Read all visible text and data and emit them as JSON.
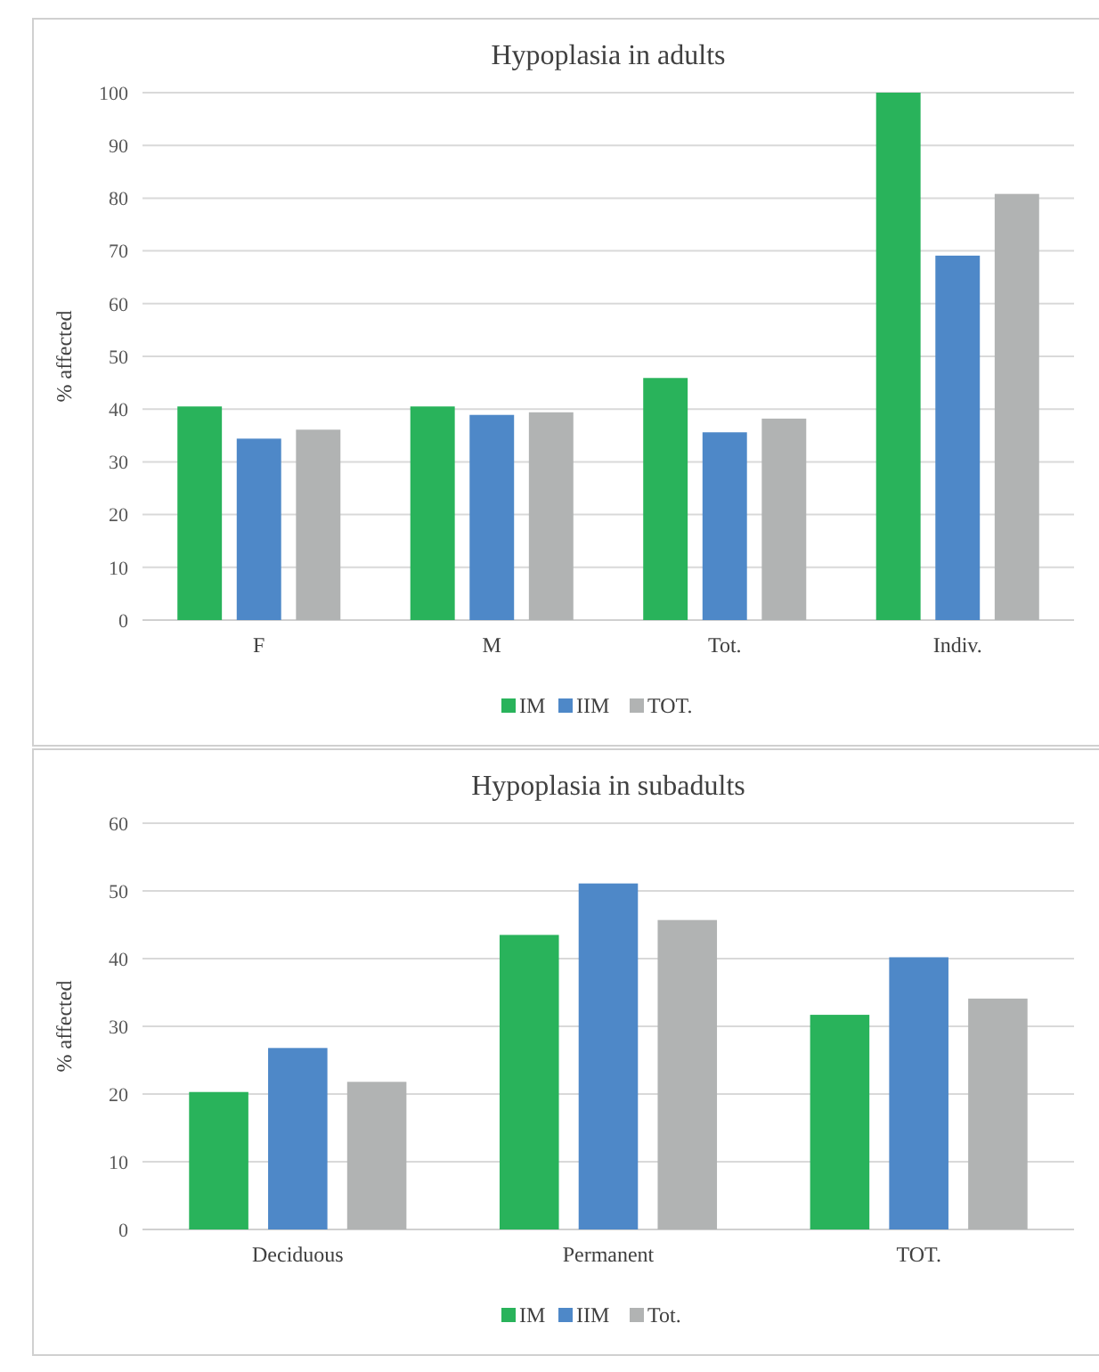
{
  "chart_data": [
    {
      "type": "bar",
      "title": "Hypoplasia in adults",
      "ylabel": "% affected",
      "categories": [
        "F",
        "M",
        "Tot.",
        "Indiv."
      ],
      "series": [
        {
          "name": "IM",
          "color": "#29b35b",
          "values": [
            40.5,
            40.5,
            45.9,
            100
          ]
        },
        {
          "name": "IIM",
          "color": "#4e88c8",
          "values": [
            34.4,
            38.9,
            35.6,
            69.1
          ]
        },
        {
          "name": "TOT.",
          "color": "#b1b3b3",
          "values": [
            36.1,
            39.4,
            38.2,
            80.8
          ]
        }
      ],
      "ylim": [
        0,
        100
      ],
      "yticks": [
        0,
        10,
        20,
        30,
        40,
        50,
        60,
        70,
        80,
        90,
        100
      ],
      "grid": "y",
      "legend": "bottom"
    },
    {
      "type": "bar",
      "title": "Hypoplasia in subadults",
      "ylabel": "% affected",
      "categories": [
        "Deciduous",
        "Permanent",
        "TOT."
      ],
      "series": [
        {
          "name": "IM",
          "color": "#29b35b",
          "values": [
            20.3,
            43.5,
            31.7
          ]
        },
        {
          "name": "IIM",
          "color": "#4e88c8",
          "values": [
            26.8,
            51.1,
            40.2
          ]
        },
        {
          "name": "Tot.",
          "color": "#b1b3b3",
          "values": [
            21.8,
            45.7,
            34.1
          ]
        }
      ],
      "ylim": [
        0,
        60
      ],
      "yticks": [
        0,
        10,
        20,
        30,
        40,
        50,
        60
      ],
      "grid": "y",
      "legend": "bottom"
    }
  ]
}
